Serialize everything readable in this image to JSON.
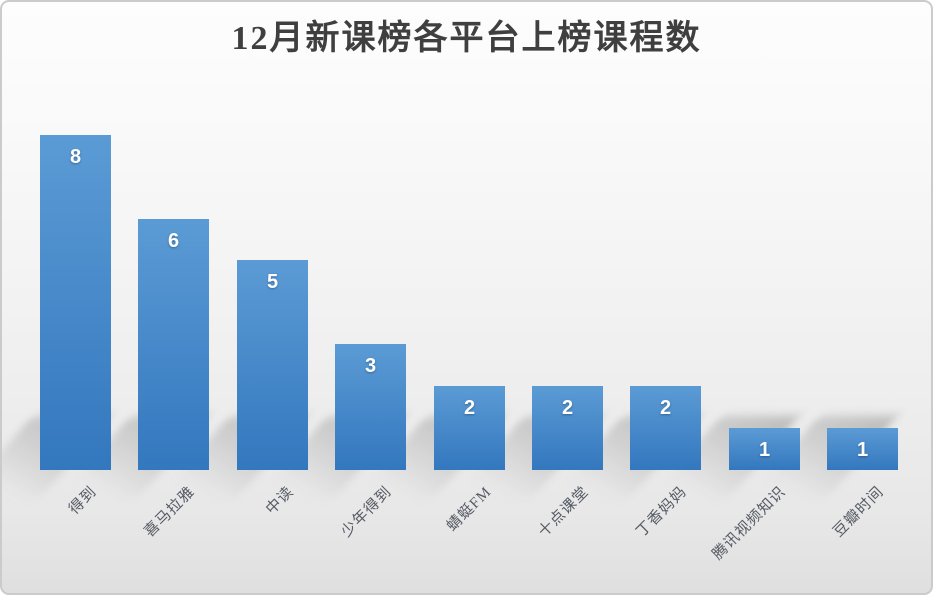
{
  "chart_data": {
    "type": "bar",
    "title": "12月新课榜各平台上榜课程数",
    "categories": [
      "得到",
      "喜马拉雅",
      "中读",
      "少年得到",
      "蜻蜓FM",
      "十点课堂",
      "丁香妈妈",
      "腾讯视频知识",
      "豆瓣时间"
    ],
    "values": [
      8,
      6,
      5,
      3,
      2,
      2,
      2,
      1,
      1
    ],
    "data_labels": [
      8,
      6,
      5,
      3,
      2,
      2,
      2,
      1,
      1
    ],
    "xlabel": "",
    "ylabel": "",
    "ylim": [
      0,
      8
    ],
    "grid": false,
    "legend": false,
    "data_labels_position": "inside-end",
    "x_label_rotation_deg": -45,
    "colors": {
      "bar_top": "#5B9BD5",
      "bar_bottom": "#3377BE",
      "title_text": "#3F3F3F",
      "axis_label_text": "#555A63",
      "value_label_text": "#FFFFFF",
      "background_top": "#FDFDFD",
      "background_bottom": "#DFDFDF",
      "frame_border": "#CBCBCB"
    }
  }
}
